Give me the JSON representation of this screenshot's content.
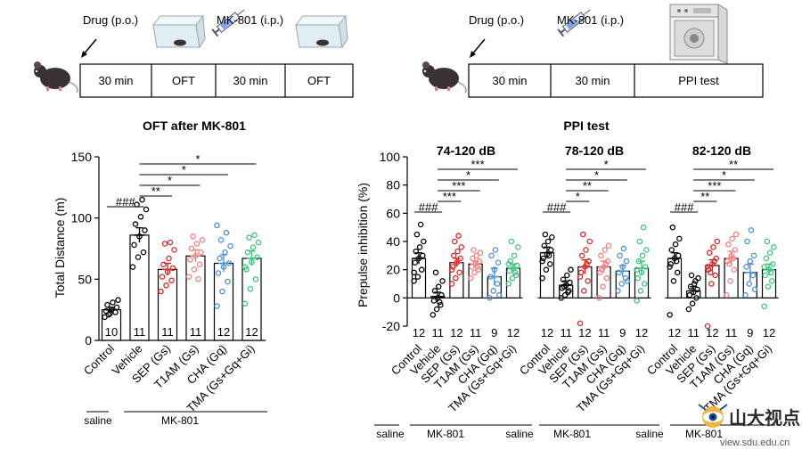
{
  "colors": {
    "control": "#000000",
    "vehicle": "#000000",
    "sep": "#d62728",
    "t1am": "#f08080",
    "cha": "#4a90d9",
    "tma": "#3cc47c",
    "bar_fill": "#ffffff"
  },
  "protocols": {
    "left": {
      "drug_label": "Drug (p.o.)",
      "mk_label": "MK-801 (i.p.)",
      "boxes": [
        "30 min",
        "OFT",
        "30 min",
        "OFT"
      ],
      "icons": [
        "mouse-icon",
        "open-field-box-icon",
        "syringe-icon",
        "open-field-box-icon"
      ]
    },
    "right": {
      "drug_label": "Drug (p.o.)",
      "mk_label": "MK-801 (i.p.)",
      "boxes": [
        "30 min",
        "30 min",
        "PPI test"
      ],
      "icons": [
        "mouse-icon",
        "syringe-icon",
        "ppi-chamber-icon"
      ]
    }
  },
  "watermark": {
    "text": "山大视点",
    "url": "view.sdu.edu.cn"
  },
  "chart_data": [
    {
      "type": "bar",
      "title": "OFT after MK-801",
      "ylabel": "Total Distance (m)",
      "ylim": [
        0,
        150
      ],
      "yticks": [
        0,
        50,
        100,
        150
      ],
      "categories": [
        "Control",
        "Vehicle",
        "SEP (Gs)",
        "T1AM (Gs)",
        "CHA (Gq)",
        "TMA (Gs+Gq+Gi)"
      ],
      "values": [
        25,
        86,
        58,
        69,
        63,
        67
      ],
      "sem": [
        2,
        6,
        5,
        5,
        7,
        6
      ],
      "n": [
        "10",
        "11",
        "11",
        "11",
        "12",
        "12"
      ],
      "points": [
        [
          19,
          22,
          23,
          24,
          25,
          27,
          29,
          31,
          33,
          21
        ],
        [
          60,
          68,
          72,
          78,
          85,
          90,
          95,
          101,
          107,
          111,
          115
        ],
        [
          40,
          45,
          49,
          52,
          56,
          59,
          62,
          67,
          74,
          79,
          80
        ],
        [
          52,
          58,
          62,
          66,
          69,
          72,
          75,
          79,
          82,
          85,
          50
        ],
        [
          28,
          40,
          48,
          55,
          60,
          63,
          67,
          72,
          77,
          82,
          88,
          94
        ],
        [
          30,
          42,
          50,
          58,
          64,
          68,
          72,
          76,
          80,
          84,
          86,
          60
        ]
      ],
      "comparisons": [
        {
          "label": "###",
          "from": 0,
          "to": 1
        },
        {
          "label": "**",
          "from": 1,
          "to": 2
        },
        {
          "label": "*",
          "from": 1,
          "to": 3
        },
        {
          "label": "*",
          "from": 1,
          "to": 4
        },
        {
          "label": "*",
          "from": 1,
          "to": 5
        }
      ],
      "treatment_labels": {
        "saline": "saline",
        "mk801": "MK-801"
      }
    },
    {
      "type": "bar",
      "panel_title": "PPI test",
      "title": "74-120 dB",
      "ylabel": "Prepulse inhibition (%)",
      "ylim": [
        -20,
        100
      ],
      "yticks": [
        -20,
        0,
        20,
        40,
        60,
        80,
        100
      ],
      "categories": [
        "Control",
        "Vehicle",
        "SEP (Gs)",
        "T1AM (Gs)",
        "CHA (Gq)",
        "TMA (Gs+Gq+Gi)"
      ],
      "values": [
        28,
        1,
        25,
        24,
        15,
        21
      ],
      "sem": [
        4,
        3,
        3,
        2,
        6,
        3
      ],
      "n": [
        "12",
        "11",
        "12",
        "11",
        "9",
        "12"
      ],
      "points": [
        [
          12,
          15,
          20,
          25,
          28,
          30,
          33,
          36,
          40,
          45,
          52,
          18
        ],
        [
          -12,
          -8,
          -5,
          -2,
          0,
          2,
          5,
          8,
          12,
          18,
          -3
        ],
        [
          10,
          14,
          18,
          22,
          25,
          28,
          30,
          33,
          36,
          40,
          44,
          20
        ],
        [
          14,
          18,
          20,
          22,
          24,
          26,
          28,
          30,
          32,
          34,
          22
        ],
        [
          0,
          5,
          10,
          15,
          20,
          25,
          30,
          34,
          2
        ],
        [
          10,
          14,
          16,
          19,
          21,
          23,
          26,
          30,
          36,
          40,
          18,
          24
        ]
      ],
      "comparisons": [
        {
          "label": "###",
          "from": 0,
          "to": 1
        },
        {
          "label": "***",
          "from": 1,
          "to": 2
        },
        {
          "label": "***",
          "from": 1,
          "to": 3
        },
        {
          "label": "*",
          "from": 1,
          "to": 4
        },
        {
          "label": "***",
          "from": 1,
          "to": 5
        }
      ],
      "treatment_labels": {
        "saline": "saline",
        "mk801": "MK-801"
      }
    },
    {
      "type": "bar",
      "title": "78-120 dB",
      "ylim": [
        -20,
        100
      ],
      "categories": [
        "Control",
        "Vehicle",
        "SEP (Gs)",
        "T1AM (Gs)",
        "CHA (Gq)",
        "TMA (Gs+Gq+Gi)"
      ],
      "values": [
        32,
        9,
        22,
        22,
        19,
        21
      ],
      "sem": [
        4,
        3,
        5,
        4,
        4,
        5
      ],
      "n": [
        "12",
        "11",
        "12",
        "11",
        "9",
        "12"
      ],
      "points": [
        [
          14,
          20,
          24,
          28,
          31,
          34,
          37,
          40,
          43,
          45,
          30,
          26
        ],
        [
          0,
          2,
          5,
          7,
          9,
          11,
          13,
          16,
          20,
          8,
          4
        ],
        [
          -18,
          5,
          12,
          18,
          22,
          26,
          30,
          34,
          40,
          45,
          24,
          15
        ],
        [
          0,
          8,
          14,
          18,
          22,
          26,
          30,
          34,
          37,
          20,
          24
        ],
        [
          5,
          10,
          14,
          18,
          22,
          26,
          30,
          35,
          12
        ],
        [
          -2,
          5,
          10,
          14,
          18,
          22,
          26,
          30,
          34,
          40,
          50,
          20
        ]
      ],
      "comparisons": [
        {
          "label": "###",
          "from": 0,
          "to": 1
        },
        {
          "label": "*",
          "from": 1,
          "to": 2
        },
        {
          "label": "**",
          "from": 1,
          "to": 3
        },
        {
          "label": "*",
          "from": 1,
          "to": 4
        },
        {
          "label": "*",
          "from": 1,
          "to": 5
        }
      ],
      "treatment_labels": {
        "saline": "saline",
        "mk801": "MK-801"
      }
    },
    {
      "type": "bar",
      "title": "82-120 dB",
      "ylim": [
        -20,
        100
      ],
      "categories": [
        "Control",
        "Vehicle",
        "SEP (Gs)",
        "T1AM (Gs)",
        "CHA (Gq)",
        "TMA (Gs+Gq+Gi)"
      ],
      "values": [
        28,
        5,
        23,
        28,
        18,
        20
      ],
      "sem": [
        4,
        3,
        4,
        5,
        6,
        4
      ],
      "n": [
        "12",
        "11",
        "12",
        "11",
        "9",
        "12"
      ],
      "points": [
        [
          -12,
          12,
          18,
          24,
          28,
          30,
          34,
          38,
          42,
          50,
          26,
          22
        ],
        [
          -8,
          -4,
          0,
          2,
          4,
          6,
          8,
          10,
          14,
          16,
          12
        ],
        [
          -20,
          10,
          16,
          20,
          24,
          28,
          32,
          36,
          40,
          18,
          26,
          22
        ],
        [
          2,
          12,
          20,
          26,
          30,
          34,
          38,
          42,
          45,
          24,
          28
        ],
        [
          2,
          10,
          16,
          22,
          26,
          30,
          40,
          48,
          6
        ],
        [
          -6,
          8,
          12,
          16,
          20,
          24,
          28,
          32,
          36,
          40,
          18,
          22
        ]
      ],
      "comparisons": [
        {
          "label": "###",
          "from": 0,
          "to": 1
        },
        {
          "label": "**",
          "from": 1,
          "to": 2
        },
        {
          "label": "***",
          "from": 1,
          "to": 3
        },
        {
          "label": "*",
          "from": 1,
          "to": 4
        },
        {
          "label": "**",
          "from": 1,
          "to": 5
        }
      ],
      "treatment_labels": {
        "saline": "saline",
        "mk801": "MK-801"
      }
    }
  ]
}
